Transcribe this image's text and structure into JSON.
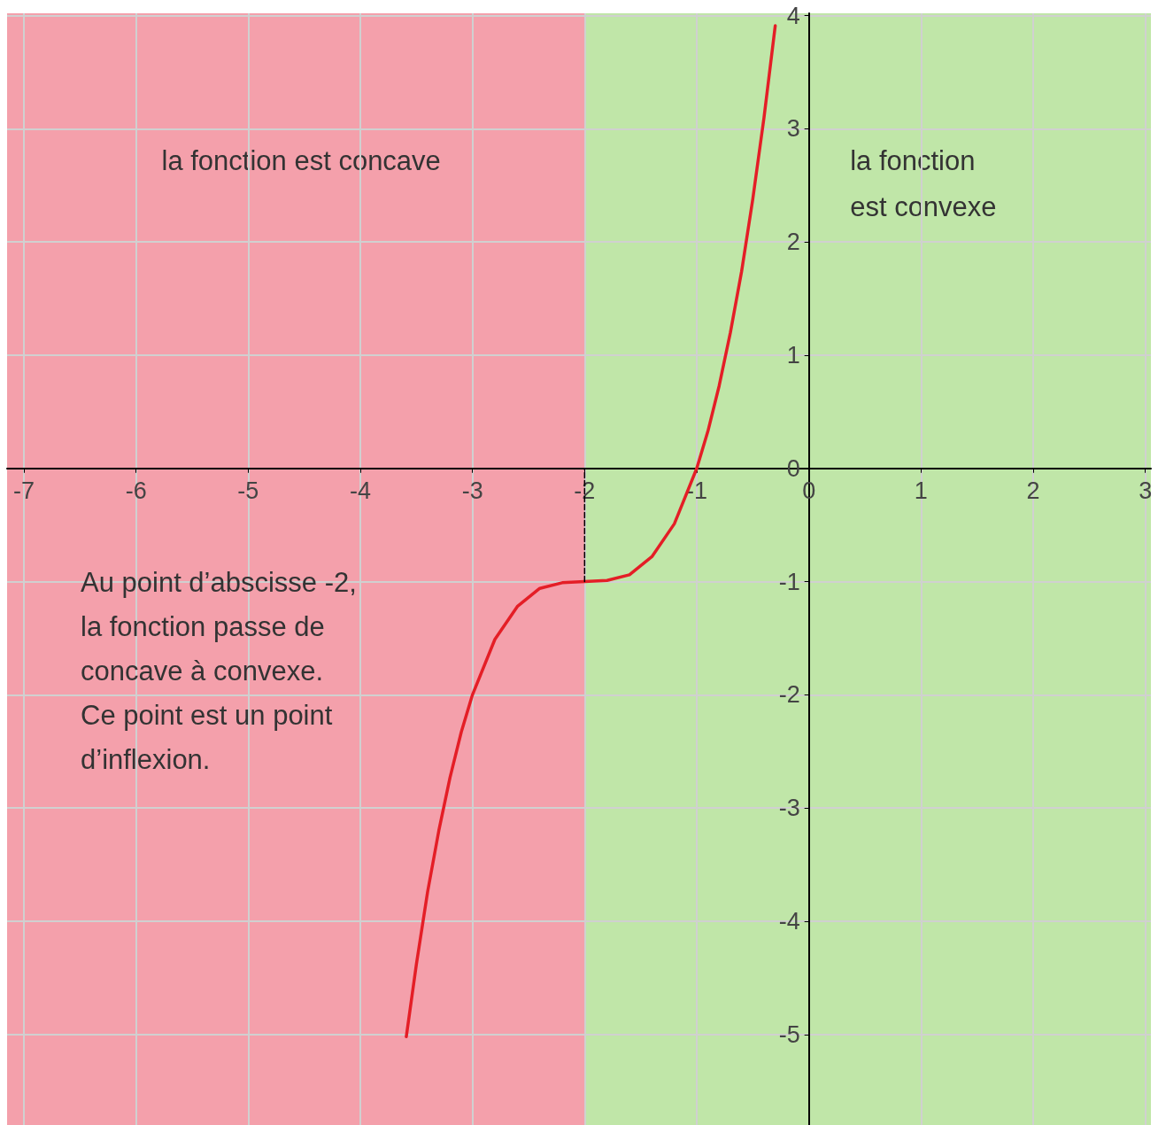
{
  "chart_data": {
    "type": "line",
    "series": [
      {
        "color": "#e41e26",
        "x": [
          -3.59,
          -3.5,
          -3.4,
          -3.3,
          -3.2,
          -3.1,
          -3.0,
          -2.8,
          -2.6,
          -2.4,
          -2.2,
          -2.0,
          -1.8,
          -1.6,
          -1.4,
          -1.2,
          -1.0,
          -0.9,
          -0.8,
          -0.7,
          -0.6,
          -0.5,
          -0.4,
          -0.3
        ],
        "values": [
          -5.02,
          -4.38,
          -3.74,
          -3.2,
          -2.73,
          -2.33,
          -2.0,
          -1.51,
          -1.22,
          -1.06,
          -1.01,
          -1.0,
          -0.99,
          -0.94,
          -0.78,
          -0.49,
          0.0,
          0.33,
          0.73,
          1.2,
          1.74,
          2.38,
          3.1,
          3.91
        ],
        "line_style": "solid"
      },
      {
        "color": "#000000",
        "x": [
          -2,
          -2
        ],
        "values": [
          -1,
          0
        ],
        "line_style": "dashed"
      }
    ],
    "xlim": [
      -7.15,
      3.05
    ],
    "ylim": [
      -5.8,
      4.02
    ],
    "xticks": [
      -7,
      -6,
      -5,
      -4,
      -3,
      -2,
      -1,
      0,
      1,
      2,
      3
    ],
    "yticks": [
      -5,
      -4,
      -3,
      -2,
      -1,
      0,
      1,
      2,
      3,
      4
    ],
    "grid": true,
    "marker": "none",
    "bands": [
      {
        "axis": "x",
        "from": -7.15,
        "to": -2,
        "label": "la fonction est concave",
        "color": "#f4a0ab"
      },
      {
        "axis": "x",
        "from": -2,
        "to": 3.05,
        "label": "la fonction\nest convexe",
        "color": "#c0e6a8"
      }
    ],
    "annotations": [
      "Au point d’abscisse -2,\nla fonction passe de\nconcave à convexe.\nCe point est un point\nd’inflexion."
    ]
  }
}
